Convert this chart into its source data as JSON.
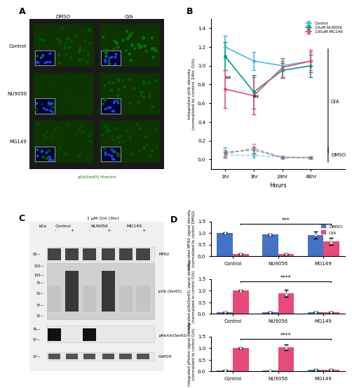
{
  "panel_B": {
    "hours": [
      1,
      3,
      24,
      48
    ],
    "oa_control_mean": [
      1.2,
      1.05,
      1.0,
      1.05
    ],
    "oa_control_err": [
      0.12,
      0.1,
      0.05,
      0.1
    ],
    "oa_nu9056_mean": [
      1.1,
      0.72,
      0.95,
      1.0
    ],
    "oa_nu9056_err": [
      0.15,
      0.18,
      0.08,
      0.12
    ],
    "oa_mg149_mean": [
      0.75,
      0.68,
      0.98,
      1.05
    ],
    "oa_mg149_err": [
      0.2,
      0.2,
      0.1,
      0.12
    ],
    "dmso_control_mean": [
      0.05,
      0.04,
      0.03,
      0.02
    ],
    "dmso_control_err": [
      0.03,
      0.02,
      0.01,
      0.01
    ],
    "dmso_nu9056_mean": [
      0.08,
      0.1,
      0.02,
      0.02
    ],
    "dmso_nu9056_err": [
      0.05,
      0.04,
      0.01,
      0.01
    ],
    "dmso_mg149_mean": [
      0.06,
      0.12,
      0.02,
      0.02
    ],
    "dmso_mg149_err": [
      0.04,
      0.05,
      0.01,
      0.01
    ],
    "ylabel": "Integrated pUb density\n(normalized to control 24hr O/A)",
    "xlabel": "Hours",
    "color_control": "#4dbbd5",
    "color_nu9056": "#00a087",
    "color_mg149": "#e64b7a",
    "xtick_labels": [
      "1hr",
      "3hr",
      "24hr",
      "48hr"
    ],
    "ylim": [
      -0.1,
      1.5
    ]
  },
  "panel_D1": {
    "categories": [
      "Control",
      "NU9056",
      "MG149"
    ],
    "dmso_mean": [
      1.0,
      0.93,
      0.92
    ],
    "dmso_err": [
      0.03,
      0.05,
      0.15
    ],
    "oa_mean": [
      0.1,
      0.1,
      0.65
    ],
    "oa_err": [
      0.02,
      0.02,
      0.15
    ],
    "ylabel": "Integrated MFN2 signal density\n(normalized to control DMSO)",
    "ylim": [
      0,
      1.5
    ],
    "sig_text": "***",
    "color_dmso": "#4472c4",
    "color_oa": "#e64b7a"
  },
  "panel_D2": {
    "categories": [
      "Control",
      "NU9056",
      "MG149"
    ],
    "dmso_mean": [
      0.08,
      0.07,
      0.08
    ],
    "dmso_err": [
      0.03,
      0.02,
      0.02
    ],
    "oa_mean": [
      1.0,
      0.88,
      0.07
    ],
    "oa_err": [
      0.03,
      0.15,
      0.03
    ],
    "ylabel": "Integrated pUb(Ser65) signal density\n(normalized to control O/A)",
    "ylim": [
      0,
      1.5
    ],
    "sig_text": "****",
    "color_dmso": "#4472c4",
    "color_oa": "#e64b7a"
  },
  "panel_D3": {
    "categories": [
      "Control",
      "NU9056",
      "MG149"
    ],
    "dmso_mean": [
      0.05,
      0.03,
      0.08
    ],
    "dmso_err": [
      0.02,
      0.01,
      0.03
    ],
    "oa_mean": [
      1.02,
      1.05,
      0.08
    ],
    "oa_err": [
      0.03,
      0.12,
      0.03
    ],
    "ylabel": "Integrated pParkin signal density\n(normalized to control O/A)",
    "ylim": [
      0,
      1.5
    ],
    "sig_text": "****",
    "color_dmso": "#4472c4",
    "color_oa": "#e64b7a"
  },
  "panel_A_label": "A",
  "panel_B_label": "B",
  "panel_C_label": "C",
  "panel_D_label": "D",
  "bg_color": "#ffffff"
}
